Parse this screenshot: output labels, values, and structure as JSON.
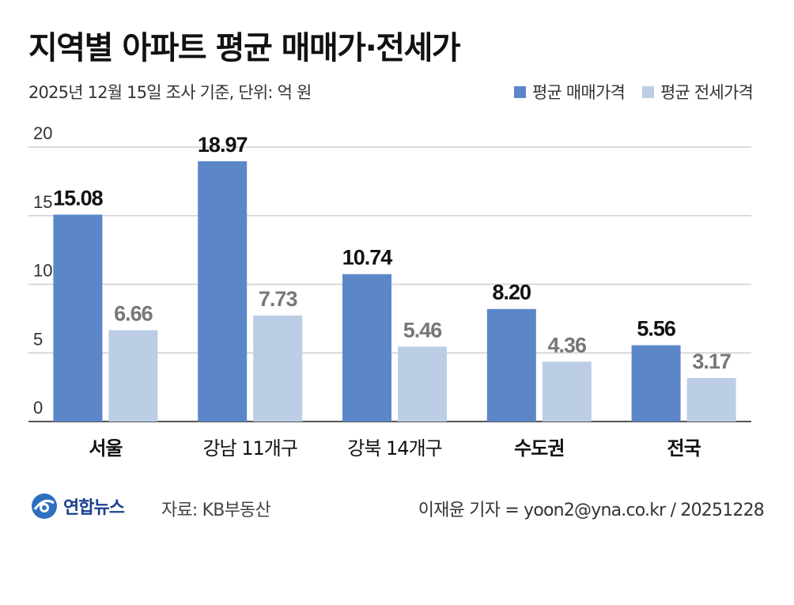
{
  "header": {
    "title": "지역별 아파트 평균 매매가·전세가",
    "subtitle": "2025년 12월 15일 조사 기준, 단위: 억 원"
  },
  "legend": {
    "items": [
      {
        "label": "평균 매매가격",
        "color": "#5b87c9"
      },
      {
        "label": "평균 전세가격",
        "color": "#bccde6"
      }
    ]
  },
  "footer": {
    "logo_text": "연합뉴스",
    "source": "자료: KB부동산",
    "credit": "이재윤 기자 = yoon2@yna.co.kr / 20251228"
  },
  "chart_data": {
    "type": "bar",
    "categories": [
      "서울",
      "강남 11개구",
      "강북 14개구",
      "수도권",
      "전국"
    ],
    "series": [
      {
        "name": "평균 매매가격",
        "values": [
          15.08,
          18.97,
          10.74,
          8.2,
          5.56
        ],
        "labels": [
          "15.08",
          "18.97",
          "10.74",
          "8.20",
          "5.56"
        ],
        "color": "#5b87c9",
        "label_color": "#111111"
      },
      {
        "name": "평균 전세가격",
        "values": [
          6.66,
          7.73,
          5.46,
          4.36,
          3.17
        ],
        "labels": [
          "6.66",
          "7.73",
          "5.46",
          "4.36",
          "3.17"
        ],
        "color": "#bccde6",
        "label_color": "#777777"
      }
    ],
    "ylim": [
      0,
      20
    ],
    "yticks": [
      "0",
      "5",
      "10",
      "15",
      "20"
    ],
    "grid": true
  }
}
